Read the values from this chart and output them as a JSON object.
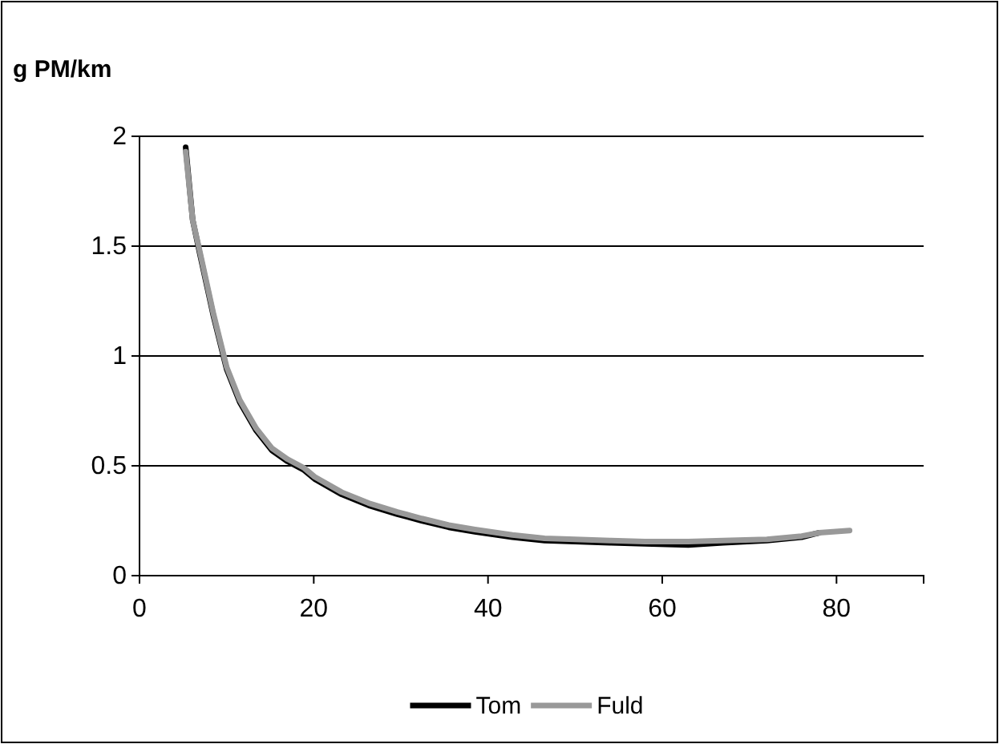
{
  "chart_data": {
    "type": "line",
    "ylabel": "g PM/km",
    "xlim": [
      0,
      90
    ],
    "ylim": [
      0,
      2
    ],
    "xticks": [
      0,
      20,
      40,
      60,
      80
    ],
    "yticks": [
      0,
      0.5,
      1,
      1.5,
      2
    ],
    "grid": "y",
    "legend": "bottom",
    "marker": "none",
    "line_style": "solid",
    "series": [
      {
        "name": "Tom",
        "color": "#000000",
        "x": [
          5.3,
          6.1,
          6.9,
          8.5,
          10,
          11.5,
          13.4,
          15.2,
          17,
          18.9,
          20.1,
          23.2,
          26.3,
          29.6,
          32.4,
          35.5,
          38.5,
          42.8,
          46.5,
          50,
          54,
          58,
          63,
          67,
          72,
          76,
          78
        ],
        "values": [
          1.95,
          1.62,
          1.47,
          1.18,
          0.94,
          0.79,
          0.66,
          0.57,
          0.52,
          0.48,
          0.44,
          0.37,
          0.32,
          0.28,
          0.25,
          0.22,
          0.2,
          0.175,
          0.16,
          0.155,
          0.15,
          0.145,
          0.14,
          0.15,
          0.16,
          0.175,
          0.195
        ]
      },
      {
        "name": "Fuld",
        "color": "#999999",
        "x": [
          5.3,
          6.1,
          6.9,
          8.5,
          10,
          11.5,
          13.4,
          15.2,
          17,
          18.9,
          20.1,
          23.2,
          26.3,
          29.6,
          32.4,
          35.5,
          38.5,
          42.8,
          46.5,
          50,
          54,
          58,
          63,
          67,
          72,
          76,
          78,
          81.5
        ],
        "values": [
          1.93,
          1.62,
          1.48,
          1.19,
          0.95,
          0.8,
          0.67,
          0.58,
          0.53,
          0.49,
          0.45,
          0.38,
          0.33,
          0.29,
          0.26,
          0.23,
          0.21,
          0.185,
          0.17,
          0.165,
          0.16,
          0.155,
          0.155,
          0.16,
          0.165,
          0.18,
          0.195,
          0.205
        ]
      }
    ]
  }
}
